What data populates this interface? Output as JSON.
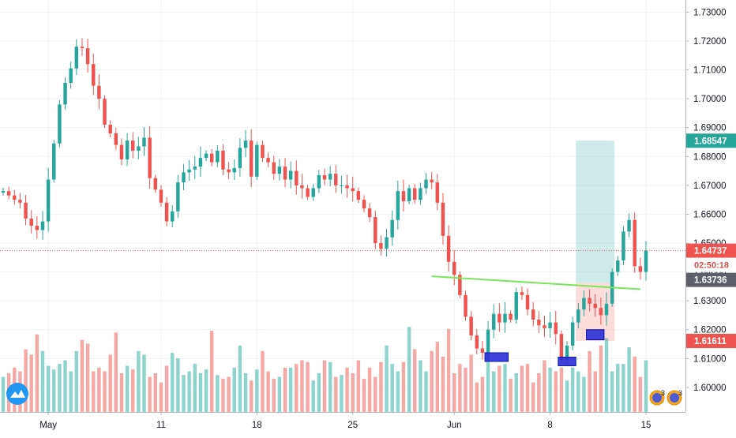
{
  "chart_data": {
    "type": "candlestick",
    "title": "",
    "y_axis": {
      "ticks": [
        "1.73000",
        "1.72000",
        "1.71000",
        "1.70000",
        "1.69000",
        "1.68000",
        "1.67000",
        "1.66000",
        "1.65000",
        "1.64000",
        "1.63000",
        "1.62000",
        "1.61000",
        "1.60000"
      ],
      "range": [
        1.5915,
        1.7342
      ]
    },
    "x_axis": {
      "ticks": [
        {
          "label": "May",
          "index": 8
        },
        {
          "label": "11",
          "index": 28
        },
        {
          "label": "18",
          "index": 45
        },
        {
          "label": "25",
          "index": 62
        },
        {
          "label": "Jun",
          "index": 80
        },
        {
          "label": "8",
          "index": 97
        },
        {
          "label": "15",
          "index": 114
        }
      ],
      "count": 115
    },
    "candle_closes": [
      1.668,
      1.6665,
      1.665,
      1.664,
      1.6585,
      1.656,
      1.6545,
      1.6575,
      1.672,
      1.6845,
      1.698,
      1.7055,
      1.7105,
      1.718,
      1.7175,
      1.712,
      1.7045,
      1.7,
      1.691,
      1.688,
      1.684,
      1.679,
      1.6855,
      1.682,
      1.6835,
      1.6865,
      1.6725,
      1.6685,
      1.664,
      1.6575,
      1.661,
      1.671,
      1.6745,
      1.6755,
      1.6765,
      1.6795,
      1.681,
      1.678,
      1.682,
      1.6755,
      1.6745,
      1.676,
      1.683,
      1.6855,
      1.673,
      1.684,
      1.6795,
      1.678,
      1.674,
      1.6765,
      1.672,
      1.675,
      1.67,
      1.669,
      1.666,
      1.669,
      1.6735,
      1.672,
      1.674,
      1.67,
      1.67,
      1.669,
      1.668,
      1.665,
      1.662,
      1.659,
      1.65,
      1.648,
      1.652,
      1.658,
      1.668,
      1.6645,
      1.669,
      1.665,
      1.669,
      1.672,
      1.671,
      1.664,
      1.6525,
      1.6435,
      1.639,
      1.632,
      1.6245,
      1.618,
      1.6135,
      1.612,
      1.62,
      1.6255,
      1.6225,
      1.6255,
      1.6235,
      1.633,
      1.632,
      1.627,
      1.6235,
      1.6215,
      1.6205,
      1.6225,
      1.6185,
      1.6095,
      1.6145,
      1.6225,
      1.627,
      1.631,
      1.629,
      1.6275,
      1.625,
      1.629,
      1.64,
      1.644,
      1.654,
      1.658,
      1.642,
      1.64,
      1.6474
    ],
    "volumes": [
      19,
      21,
      24,
      22,
      34,
      31,
      42,
      33,
      25,
      23,
      26,
      28,
      22,
      33,
      39,
      37,
      22,
      24,
      22,
      31,
      43,
      21,
      25,
      23,
      33,
      31,
      19,
      21,
      16,
      25,
      32,
      29,
      20,
      22,
      26,
      21,
      23,
      44,
      20,
      18,
      19,
      24,
      36,
      21,
      17,
      23,
      33,
      22,
      18,
      19,
      24,
      24,
      26,
      28,
      27,
      17,
      21,
      28,
      27,
      19,
      20,
      24,
      21,
      28,
      18,
      24,
      19,
      27,
      36,
      26,
      22,
      27,
      46,
      34,
      28,
      22,
      33,
      38,
      30,
      45,
      21,
      26,
      24,
      31,
      16,
      19,
      32,
      22,
      25,
      26,
      18,
      21,
      25,
      26,
      16,
      21,
      28,
      24,
      22,
      24,
      17,
      24,
      22,
      19,
      33,
      22,
      36,
      40,
      22,
      26,
      26,
      35,
      30,
      19,
      28
    ],
    "markers": {
      "trendline": {
        "color": "#76e85a",
        "from": [
          76,
          1.6385
        ],
        "to": [
          113,
          1.634
        ]
      },
      "long_position": {
        "entry": 1.6362,
        "target": 1.6855,
        "stop": 1.6161,
        "start_index": 102,
        "end_index": 108,
        "profit_color": "#26a69a",
        "loss_color": "#ef5350"
      },
      "blue_boxes": [
        {
          "from": 86,
          "to": 89,
          "low": 1.609,
          "high": 1.612
        },
        {
          "from": 99,
          "to": 101,
          "low": 1.6075,
          "high": 1.6105
        },
        {
          "from": 104,
          "to": 106,
          "low": 1.6165,
          "high": 1.62
        }
      ],
      "event_icons": [
        "3",
        "3"
      ]
    },
    "price_labels": [
      {
        "value": "1.68547",
        "price": 1.68547,
        "color": "#26a69a"
      },
      {
        "value": "1.64737",
        "price": 1.64737,
        "color": "#ef5350"
      },
      {
        "value": "02:50:18",
        "price": 1.64737,
        "color": "#ffffff",
        "role": "countdown"
      },
      {
        "value": "1.63736",
        "price": 1.63736,
        "color": "#5d606b"
      },
      {
        "value": "1.61611",
        "price": 1.61611,
        "color": "#ef5350"
      }
    ],
    "last_price": 1.64737,
    "colors": {
      "up": "#26a69a",
      "down": "#ef5350",
      "up_vol": "#8fd4cc",
      "down_vol": "#f5a9a6",
      "grid": "#f0f3fa"
    },
    "grid": true,
    "legend": "none"
  }
}
